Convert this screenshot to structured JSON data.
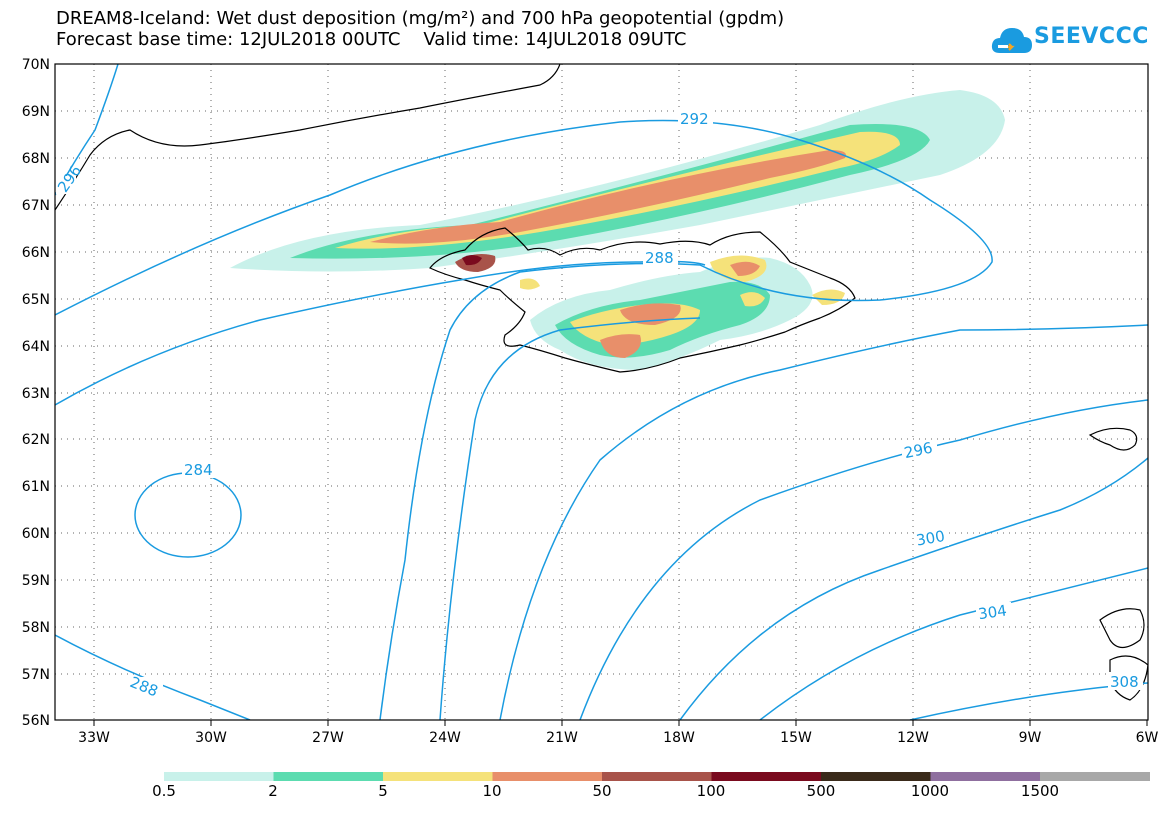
{
  "header": {
    "title_line1": "DREAM8-Iceland: Wet dust deposition (mg/m²) and 700 hPa geopotential (gpdm)",
    "title_line2": "Forecast base time: 12JUL2018 00UTC    Valid time: 14JUL2018 09UTC"
  },
  "logo": {
    "text": "SEEVCCC",
    "icon": "cloud-icon"
  },
  "map": {
    "lat_labels": [
      "70N",
      "69N",
      "68N",
      "67N",
      "66N",
      "65N",
      "64N",
      "63N",
      "62N",
      "61N",
      "60N",
      "59N",
      "58N",
      "57N",
      "56N"
    ],
    "lon_labels": [
      "33W",
      "30W",
      "27W",
      "24W",
      "21W",
      "18W",
      "15W",
      "12W",
      "9W",
      "6W"
    ],
    "contour_labels": [
      "284",
      "288",
      "288",
      "292",
      "296",
      "296",
      "300",
      "304",
      "308"
    ],
    "contour_color": "#1a9be0"
  },
  "legend": {
    "thresholds": [
      "0.5",
      "2",
      "5",
      "10",
      "50",
      "100",
      "500",
      "1000",
      "1500"
    ],
    "colors": [
      "#c8f1ea",
      "#5cdcb0",
      "#f5e27a",
      "#e88f6a",
      "#a8534a",
      "#7a0a1e",
      "#3a2a1a",
      "#8f6f9f",
      "#a8a8a8"
    ]
  }
}
